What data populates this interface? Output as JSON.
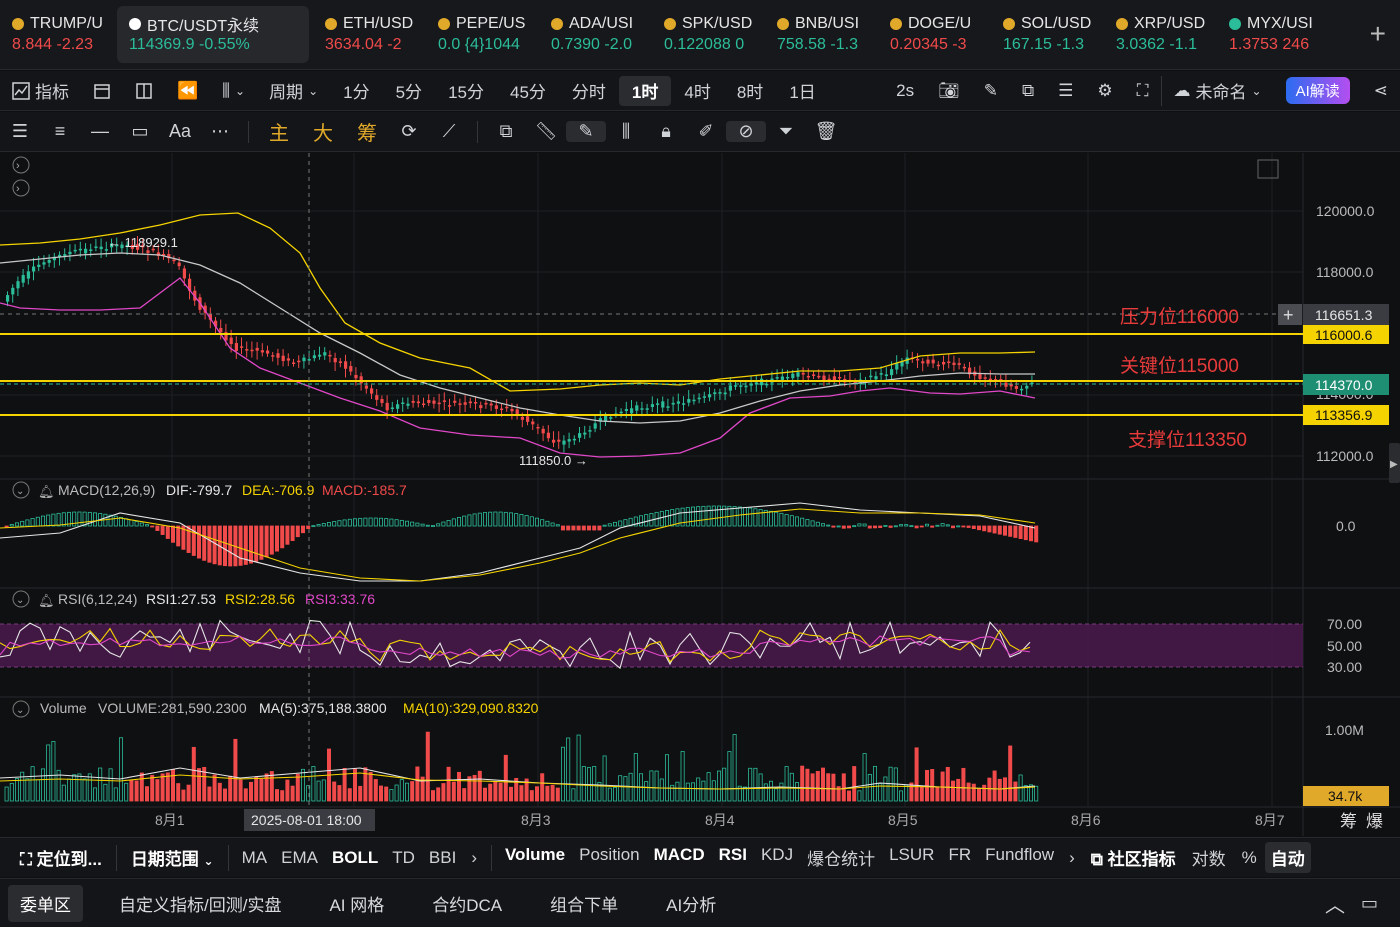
{
  "tickers": [
    {
      "symbol": "TRUMP/U",
      "price": "8.844",
      "change": "-2.23",
      "dir": "down",
      "dot": "#e0a92a"
    },
    {
      "symbol": "BTC/USDT永续",
      "price": "114369.9",
      "change": "-0.55%",
      "dir": "up",
      "dot": "#ffffff",
      "active": true
    },
    {
      "symbol": "ETH/USD",
      "price": "3634.04",
      "change": "-2",
      "dir": "down",
      "dot": "#e0a92a"
    },
    {
      "symbol": "PEPE/US",
      "price": "0.0",
      "change": "{4}1044",
      "dir": "up",
      "dot": "#e0a92a"
    },
    {
      "symbol": "ADA/USI",
      "price": "0.7390",
      "change": "-2.0",
      "dir": "up",
      "dot": "#e0a92a"
    },
    {
      "symbol": "SPK/USD",
      "price": "0.122088",
      "change": "0",
      "dir": "up",
      "dot": "#e0a92a"
    },
    {
      "symbol": "BNB/USI",
      "price": "758.58",
      "change": "-1.3",
      "dir": "up",
      "dot": "#e0a92a"
    },
    {
      "symbol": "DOGE/U",
      "price": "0.20345",
      "change": "-3",
      "dir": "down",
      "dot": "#e0a92a"
    },
    {
      "symbol": "SOL/USD",
      "price": "167.15",
      "change": "-1.3",
      "dir": "up",
      "dot": "#e0a92a"
    },
    {
      "symbol": "XRP/USD",
      "price": "3.0362",
      "change": "-1.1",
      "dir": "up",
      "dot": "#e0a92a"
    },
    {
      "symbol": "MYX/USI",
      "price": "1.3753",
      "change": "246",
      "dir": "down",
      "dot": "#2bbd9a"
    }
  ],
  "toolbar1": {
    "indicators": "指标",
    "period": "周期",
    "intervals": [
      "1分",
      "5分",
      "15分",
      "45分",
      "分时",
      "1时",
      "4时",
      "8时",
      "1日"
    ],
    "selected_interval": "1时",
    "refresh": "2s",
    "layout_name": "未命名",
    "ai_button": "AI解读"
  },
  "toolbar2": {
    "text_tool": "Aa",
    "main": "主",
    "big": "大",
    "chips": "筹"
  },
  "chart": {
    "price_axis": [
      "120000.0",
      "118000.0",
      "114000.0",
      "112000.0"
    ],
    "high_label": "← 118929.1",
    "low_label": "111850.0 →",
    "cursor_price": "116651.3",
    "line_resistance_tag": "116000.6",
    "line_current_tag": "114370.0",
    "line_support_tag": "113356.9",
    "annotation_resistance": "压力位116000",
    "annotation_key": "关键位115000",
    "annotation_support": "支撑位113350",
    "macd_header": "MACD(12,26,9)",
    "macd_dif": "DIF:-799.7",
    "macd_dea": "DEA:-706.9",
    "macd_val": "MACD:-185.7",
    "macd_zero": "0.0",
    "rsi_header": "RSI(6,12,24)",
    "rsi1": "RSI1:27.53",
    "rsi2": "RSI2:28.56",
    "rsi3": "RSI3:33.76",
    "rsi_levels": [
      "70.00",
      "50.00",
      "30.00"
    ],
    "vol_header": "Volume",
    "vol_val": "VOLUME:281,590.2300",
    "vol_ma5": "MA(5):375,188.3800",
    "vol_ma10": "MA(10):329,090.8320",
    "vol_axis": "1.00M",
    "vol_tag": "34.7k",
    "x_labels": [
      "8月1",
      "8月3",
      "8月4",
      "8月5",
      "8月6",
      "8月7"
    ],
    "cursor_time": "2025-08-01 18:00",
    "corner_chips": "筹",
    "corner_burst": "爆"
  },
  "indicator_bar": {
    "locate": "定位到...",
    "date_range": "日期范围",
    "main_inds": [
      "MA",
      "EMA",
      "BOLL",
      "TD",
      "BBI"
    ],
    "active_main": "BOLL",
    "sub_inds": [
      "Volume",
      "Position",
      "MACD",
      "RSI",
      "KDJ",
      "爆仓统计",
      "LSUR",
      "FR",
      "Fundflow"
    ],
    "active_sub": [
      "Volume",
      "MACD",
      "RSI"
    ],
    "community": "社区指标",
    "log": "对数",
    "pct": "%",
    "auto": "自动"
  },
  "tab_bar": {
    "tabs": [
      "委单区",
      "自定义指标/回测/实盘",
      "AI 网格",
      "合约DCA",
      "组合下单",
      "AI分析"
    ],
    "selected": "委单区"
  },
  "colors": {
    "up": "#2bbd9a",
    "down": "#f04a4a",
    "level_line": "#f5d300",
    "boll_upper": "#f5d300",
    "boll_mid": "#c8c8c8",
    "boll_lower": "#e048c8",
    "rsi_band": "#4a1a4e"
  }
}
